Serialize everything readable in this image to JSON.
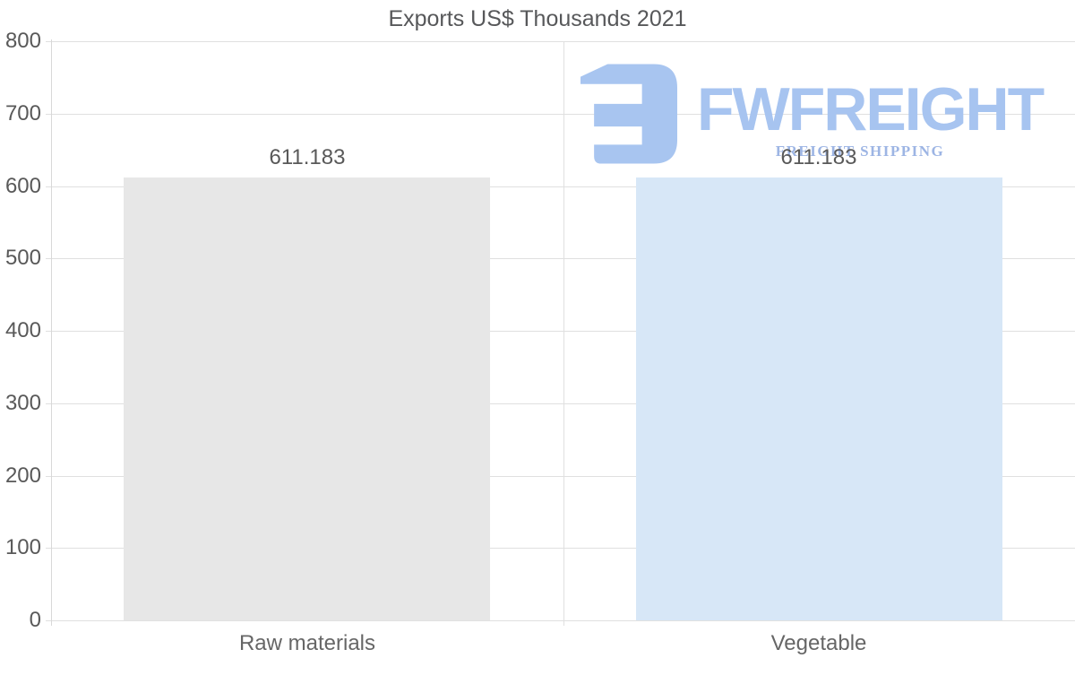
{
  "title": "Exports US$ Thousands 2021",
  "watermark": {
    "brand": "FWFREIGHT",
    "tagline": "FREIGHT SHIPPING",
    "brand_color": "#a7c4f0",
    "tagline_color": "#9db5e4",
    "icon_color": "#a8c5f0"
  },
  "styles": {
    "gridline_color": "#e0e0e0",
    "axis_line_color": "#d8d8d8",
    "tick_text_color": "#595959",
    "category_text_color": "#666666",
    "title_color": "#57585a"
  },
  "chart_data": {
    "type": "bar",
    "title": "Exports US$ Thousands 2021",
    "categories": [
      "Raw materials",
      "Vegetable"
    ],
    "values": [
      611.183,
      611.183
    ],
    "value_labels": [
      "611.183",
      "611.183"
    ],
    "bar_colors": [
      "#e7e7e7",
      "#d7e7f7"
    ],
    "xlabel": "",
    "ylabel": "",
    "ylim": [
      0,
      800
    ],
    "yticks": [
      0,
      100,
      200,
      300,
      400,
      500,
      600,
      700,
      800
    ],
    "grid": true,
    "legend": false
  }
}
